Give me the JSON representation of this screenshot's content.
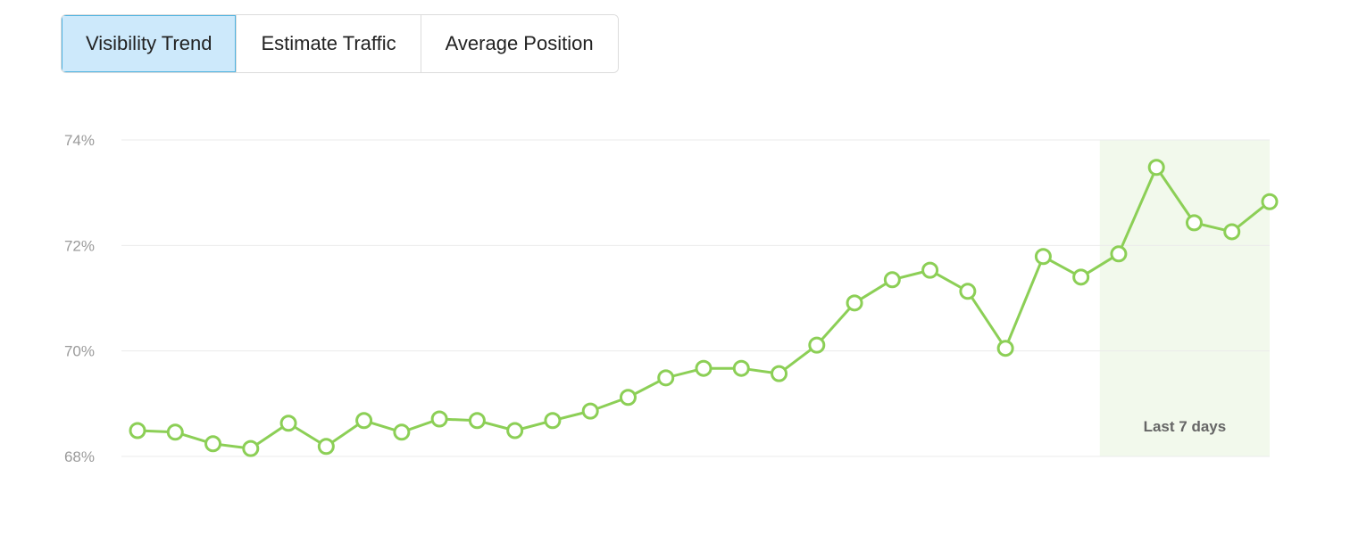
{
  "tabs": {
    "items": [
      "Visibility Trend",
      "Estimate Traffic",
      "Average Position"
    ],
    "active": 0
  },
  "chart_data": {
    "type": "line",
    "series": [
      {
        "color": "#8ccf56",
        "values": [
          68.49,
          68.46,
          68.24,
          68.15,
          68.63,
          68.19,
          68.68,
          68.46,
          68.71,
          68.68,
          68.49,
          68.68,
          68.86,
          69.12,
          69.49,
          69.67,
          69.67,
          69.57,
          70.11,
          70.91,
          71.35,
          71.53,
          71.13,
          70.05,
          71.79,
          71.4,
          71.84,
          73.48,
          72.43,
          72.26,
          72.83
        ]
      }
    ],
    "ylim": [
      68,
      74
    ],
    "yticks": [
      {
        "value": 68,
        "label": "68%"
      },
      {
        "value": 70,
        "label": "70%"
      },
      {
        "value": 72,
        "label": "72%"
      },
      {
        "value": 74,
        "label": "74%"
      }
    ],
    "grid": true,
    "highlight": {
      "label": "Last 7 days",
      "from": 26,
      "color": "#f2f9ec"
    }
  }
}
